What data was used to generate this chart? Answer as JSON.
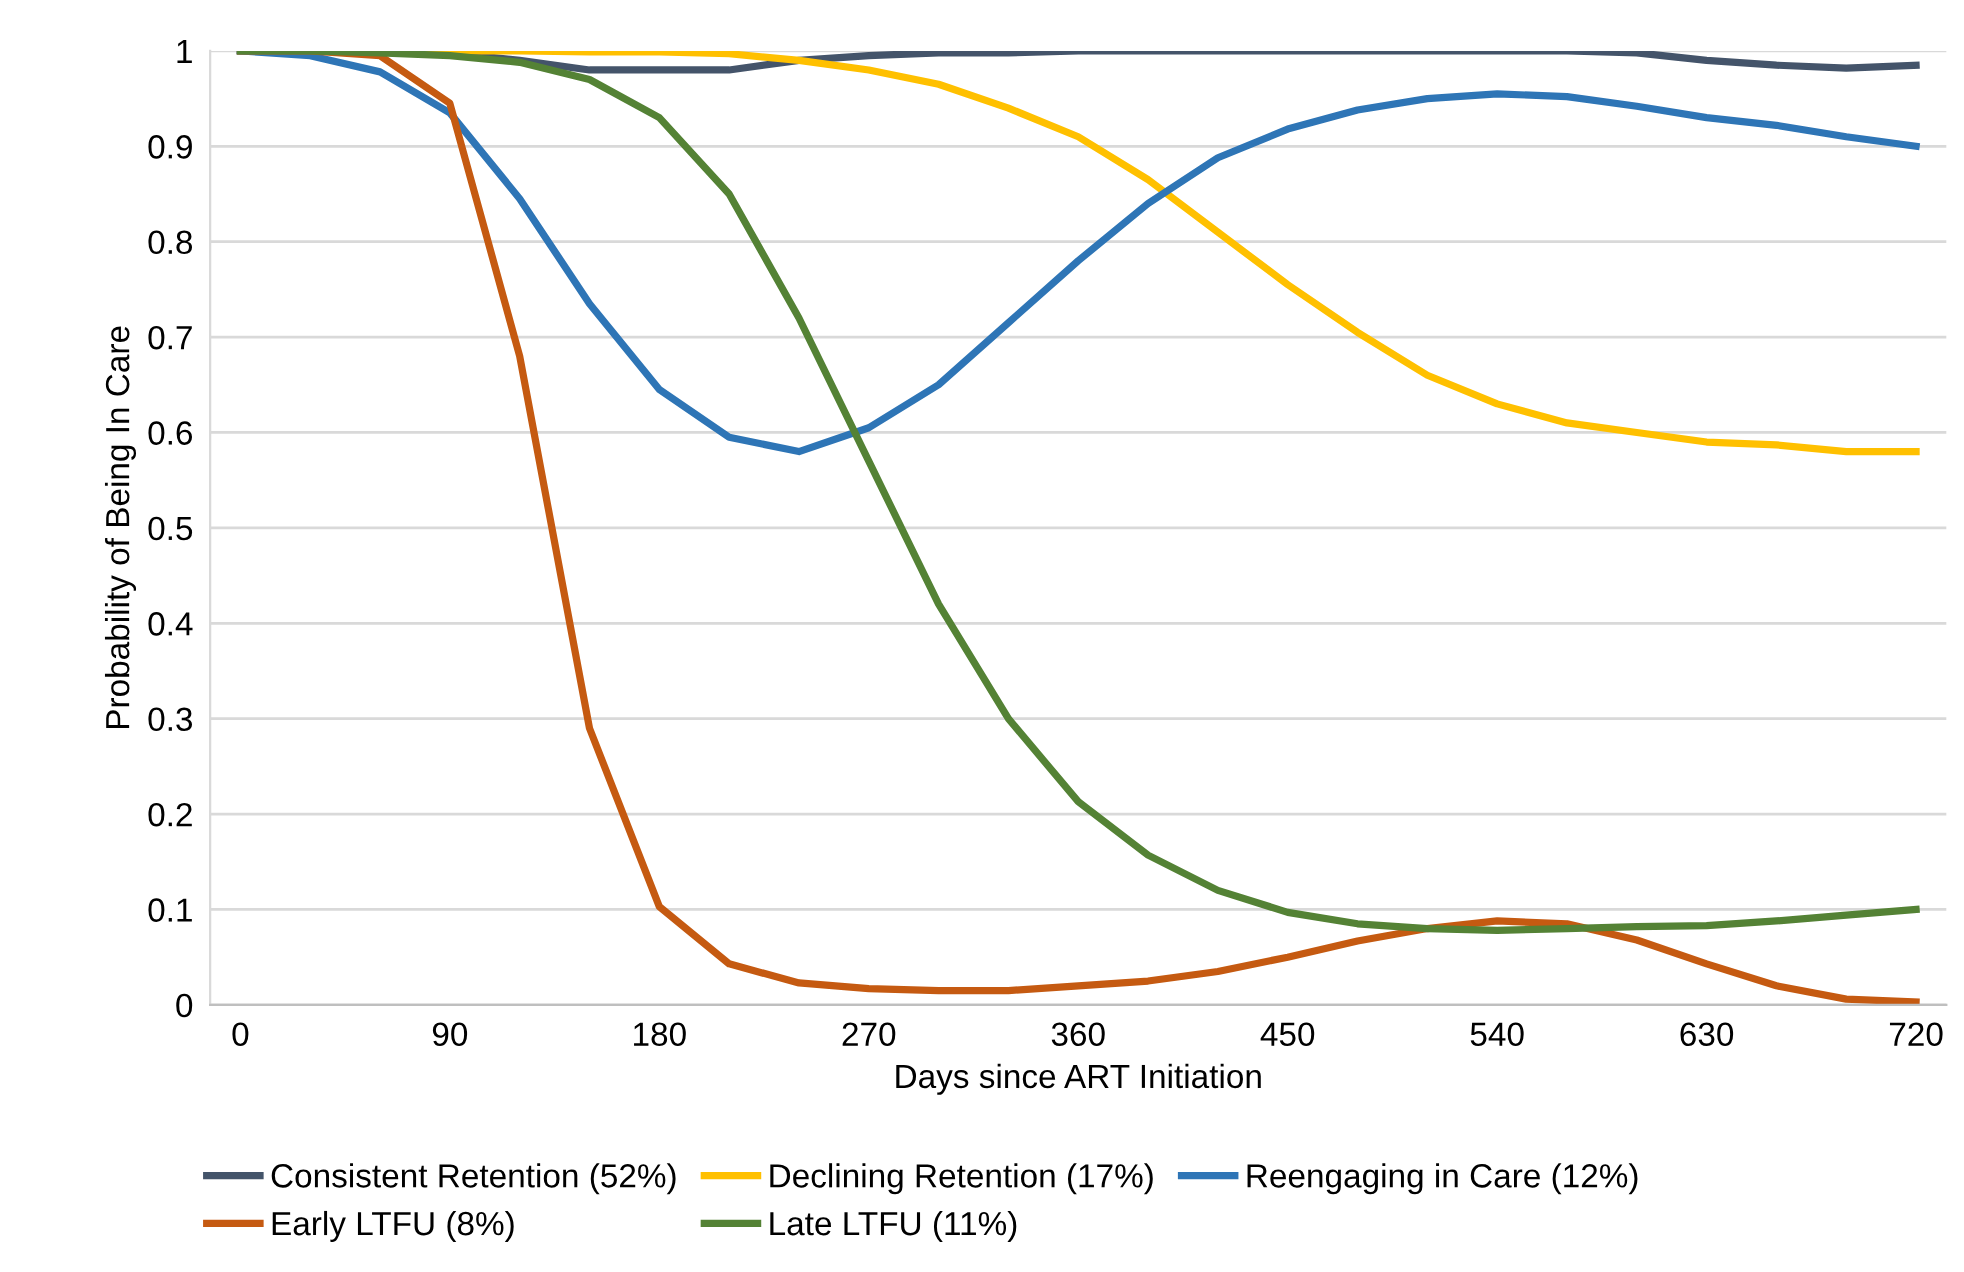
{
  "chart_data": {
    "type": "line",
    "xlabel": "Days since ART Initiation",
    "ylabel": "Probability of Being In Care",
    "x": [
      0,
      30,
      60,
      90,
      120,
      150,
      180,
      210,
      240,
      270,
      300,
      330,
      360,
      390,
      420,
      450,
      480,
      510,
      540,
      570,
      600,
      630,
      660,
      690,
      720
    ],
    "xlim": [
      -13,
      733
    ],
    "xticks": [
      0,
      90,
      180,
      270,
      360,
      450,
      540,
      630,
      720
    ],
    "ylim": [
      0,
      1
    ],
    "yticks": [
      0,
      0.1,
      0.2,
      0.3,
      0.4,
      0.5,
      0.6,
      0.7,
      0.8,
      0.9,
      1
    ],
    "grid": "y",
    "legend": "bottom",
    "marker": "none",
    "line_style": "solid",
    "series": [
      {
        "name": "Consistent Retention (52%)",
        "color": "#44546a",
        "values": [
          1,
          1,
          1,
          0.998,
          0.99,
          0.98,
          0.98,
          0.98,
          0.99,
          0.995,
          0.998,
          0.998,
          1,
          1,
          1,
          1,
          1,
          1,
          1,
          1,
          0.998,
          0.99,
          0.985,
          0.982,
          0.985
        ]
      },
      {
        "name": "Declining Retention (17%)",
        "color": "#ffc000",
        "values": [
          null,
          null,
          1,
          1,
          1,
          0.999,
          0.999,
          0.997,
          0.99,
          0.98,
          0.965,
          0.94,
          0.91,
          0.865,
          0.81,
          0.755,
          0.705,
          0.66,
          0.63,
          0.61,
          0.6,
          0.59,
          0.587,
          0.58,
          0.58
        ]
      },
      {
        "name": "Reengaging in Care (12%)",
        "color": "#2e75b6",
        "values": [
          1,
          0.995,
          0.978,
          0.935,
          0.845,
          0.735,
          0.645,
          0.595,
          0.58,
          0.605,
          0.65,
          0.715,
          0.78,
          0.84,
          0.888,
          0.918,
          0.938,
          0.95,
          0.955,
          0.952,
          0.942,
          0.93,
          0.922,
          0.91,
          0.9
        ]
      },
      {
        "name": "Early LTFU (8%)",
        "color": "#c55a11",
        "values": [
          1,
          1,
          0.995,
          0.945,
          0.68,
          0.29,
          0.103,
          0.043,
          0.023,
          0.017,
          0.015,
          0.015,
          0.02,
          0.025,
          0.035,
          0.05,
          0.067,
          0.08,
          0.088,
          0.085,
          0.068,
          0.043,
          0.02,
          0.006,
          0.003
        ]
      },
      {
        "name": "Late LTFU (11%)",
        "color": "#548235",
        "values": [
          1,
          1,
          0.998,
          0.995,
          0.988,
          0.97,
          0.93,
          0.85,
          0.72,
          0.57,
          0.42,
          0.3,
          0.213,
          0.157,
          0.12,
          0.097,
          0.085,
          0.08,
          0.078,
          0.08,
          0.082,
          0.083,
          0.088,
          0.094,
          0.1
        ]
      }
    ]
  }
}
